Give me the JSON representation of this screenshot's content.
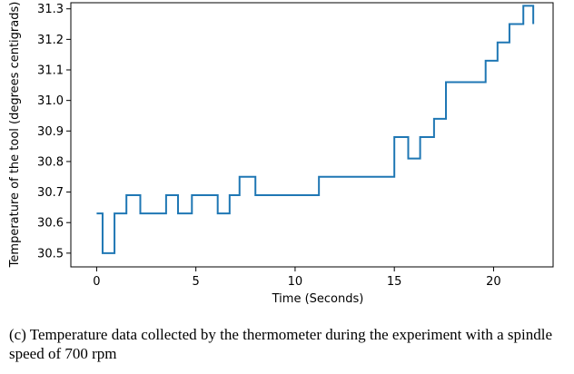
{
  "chart_data": {
    "type": "line",
    "xlabel": "Time (Seconds)",
    "ylabel": "Temperature of the tool (degrees centigrads)",
    "xlim": [
      -1.3,
      23.0
    ],
    "ylim": [
      30.455,
      31.32
    ],
    "xticks": [
      0,
      5,
      10,
      15,
      20
    ],
    "yticks": [
      30.5,
      30.6,
      30.7,
      30.8,
      30.9,
      31.0,
      31.1,
      31.2,
      31.3
    ],
    "ytick_labels": [
      "30.5",
      "30.6",
      "30.7",
      "30.8",
      "30.9",
      "31.0",
      "31.1",
      "31.2",
      "31.3"
    ],
    "grid": false,
    "line_color": "#1f77b4",
    "series": [
      {
        "step": "post",
        "x": [
          0.0,
          0.2,
          0.3,
          0.9,
          1.5,
          2.2,
          3.5,
          4.1,
          4.8,
          6.1,
          6.7,
          7.2,
          8.0,
          11.2,
          15.0,
          15.7,
          16.3,
          17.0,
          17.6,
          19.6,
          20.2,
          20.8,
          21.5,
          22.0
        ],
        "y": [
          30.63,
          30.63,
          30.5,
          30.63,
          30.69,
          30.63,
          30.69,
          30.63,
          30.69,
          30.63,
          30.69,
          30.75,
          30.69,
          30.75,
          30.88,
          30.81,
          30.88,
          30.94,
          31.06,
          31.13,
          31.19,
          31.25,
          31.31,
          31.25
        ]
      }
    ]
  },
  "caption": {
    "text": "(c) Temperature data collected by the thermometer during the experiment with a spindle speed of 700 rpm"
  }
}
